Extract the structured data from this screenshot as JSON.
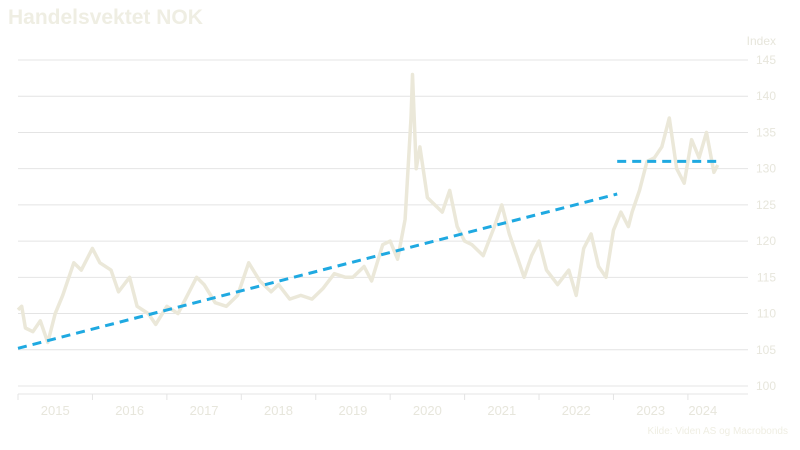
{
  "title": "Handelsvektet NOK",
  "source": "Kilde: Viden AS og Macrobonds",
  "colors": {
    "series": "#ebe8d9",
    "trend": "#1fa9e1",
    "grid": "#e4e4e4",
    "text": "#e7e6dc"
  },
  "chart_data": {
    "type": "line",
    "title": "Handelsvektet NOK",
    "ylabel": "Index",
    "xlabel": "",
    "ylim": [
      100,
      145
    ],
    "xlim": [
      2014.5,
      2024.2
    ],
    "yticks": [
      100,
      105,
      110,
      115,
      120,
      125,
      130,
      135,
      140,
      145
    ],
    "xticks": [
      "2015",
      "2016",
      "2017",
      "2018",
      "2019",
      "2020",
      "2021",
      "2022",
      "2023",
      "2024"
    ],
    "grid": true,
    "y_axis_side": "right",
    "series": [
      {
        "x": [
          2014.5,
          2014.55,
          2014.6,
          2014.7,
          2014.8,
          2014.9,
          2015.0,
          2015.1,
          2015.25,
          2015.35,
          2015.5,
          2015.6,
          2015.75,
          2015.85,
          2016.0,
          2016.1,
          2016.25,
          2016.35,
          2016.5,
          2016.65,
          2016.8,
          2016.9,
          2017.0,
          2017.15,
          2017.3,
          2017.45,
          2017.6,
          2017.75,
          2017.9,
          2018.0,
          2018.15,
          2018.3,
          2018.45,
          2018.6,
          2018.75,
          2018.9,
          2019.0,
          2019.15,
          2019.25,
          2019.4,
          2019.5,
          2019.6,
          2019.7,
          2019.78,
          2019.8,
          2019.85,
          2019.9,
          2020.0,
          2020.1,
          2020.2,
          2020.3,
          2020.4,
          2020.5,
          2020.6,
          2020.75,
          2020.9,
          2021.0,
          2021.1,
          2021.2,
          2021.3,
          2021.4,
          2021.5,
          2021.6,
          2021.75,
          2021.9,
          2022.0,
          2022.1,
          2022.2,
          2022.3,
          2022.4,
          2022.5,
          2022.6,
          2022.7,
          2022.75,
          2022.85,
          2022.95,
          2023.05,
          2023.15,
          2023.25,
          2023.35,
          2023.45,
          2023.55,
          2023.65,
          2023.75,
          2023.85,
          2023.9
        ],
        "y": [
          110.5,
          111.0,
          108.0,
          107.5,
          109.0,
          106.0,
          110.0,
          112.5,
          117.0,
          116.0,
          119.0,
          117.0,
          116.0,
          113.0,
          115.0,
          111.0,
          110.0,
          108.5,
          111.0,
          110.0,
          113.0,
          115.0,
          114.0,
          111.5,
          111.0,
          112.5,
          117.0,
          114.5,
          113.0,
          114.0,
          112.0,
          112.5,
          112.0,
          113.5,
          115.5,
          115.0,
          115.0,
          116.5,
          114.5,
          119.5,
          120.0,
          117.5,
          123.0,
          137.0,
          143.0,
          130.0,
          133.0,
          126.0,
          125.0,
          124.0,
          127.0,
          122.0,
          120.0,
          119.5,
          118.0,
          122.0,
          125.0,
          121.0,
          118.0,
          115.0,
          118.0,
          120.0,
          116.0,
          114.0,
          116.0,
          112.5,
          119.0,
          121.0,
          116.5,
          115.0,
          121.5,
          124.0,
          122.0,
          124.0,
          127.0,
          131.0,
          131.5,
          133.0,
          137.0,
          130.0,
          128.0,
          134.0,
          131.5,
          135.0,
          129.5,
          130.5
        ]
      },
      {
        "name": "trend",
        "x": [
          2014.5,
          2022.55
        ],
        "y": [
          105.2,
          126.5
        ],
        "style": "dashed"
      },
      {
        "name": "level",
        "x": [
          2022.55,
          2023.9
        ],
        "y": [
          131.0,
          131.0
        ],
        "style": "dashed"
      }
    ]
  }
}
